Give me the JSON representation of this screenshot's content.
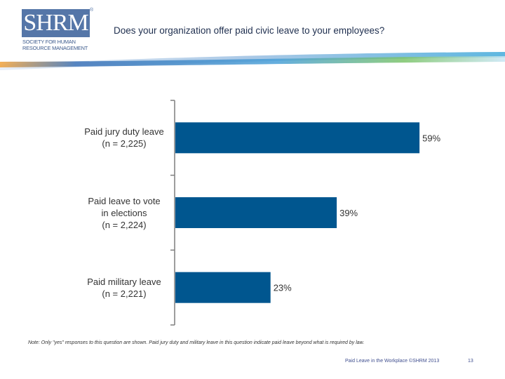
{
  "header": {
    "logo_text": "SHRM",
    "logo_reg": "®",
    "logo_subtitle": "SOCIETY FOR HUMAN RESOURCE MANAGEMENT",
    "title": "Does your organization offer paid civic leave to your employees?"
  },
  "chart_data": {
    "type": "bar",
    "orientation": "horizontal",
    "title": "Does your organization offer paid civic leave to your employees?",
    "categories": [
      "Paid jury duty leave\n(n = 2,225)",
      "Paid leave to vote\nin elections\n(n = 2,224)",
      "Paid military leave\n(n = 2,221)"
    ],
    "values": [
      59,
      39,
      23
    ],
    "data_labels": [
      "59%",
      "39%",
      "23%"
    ],
    "xlim": [
      0,
      100
    ],
    "bar_color": "#00568f",
    "grid": false,
    "legend": "none"
  },
  "footer": {
    "note": "Note: Only \"yes\" responses to this question are shown. Paid jury duty and military leave in this question indicate paid leave beyond what is required by law.",
    "source": "Paid Leave in the Workplace ©SHRM 2013",
    "page": "13"
  },
  "colors": {
    "brand": "#5576a8",
    "bar": "#00568f",
    "axis": "#7f7f7f"
  }
}
